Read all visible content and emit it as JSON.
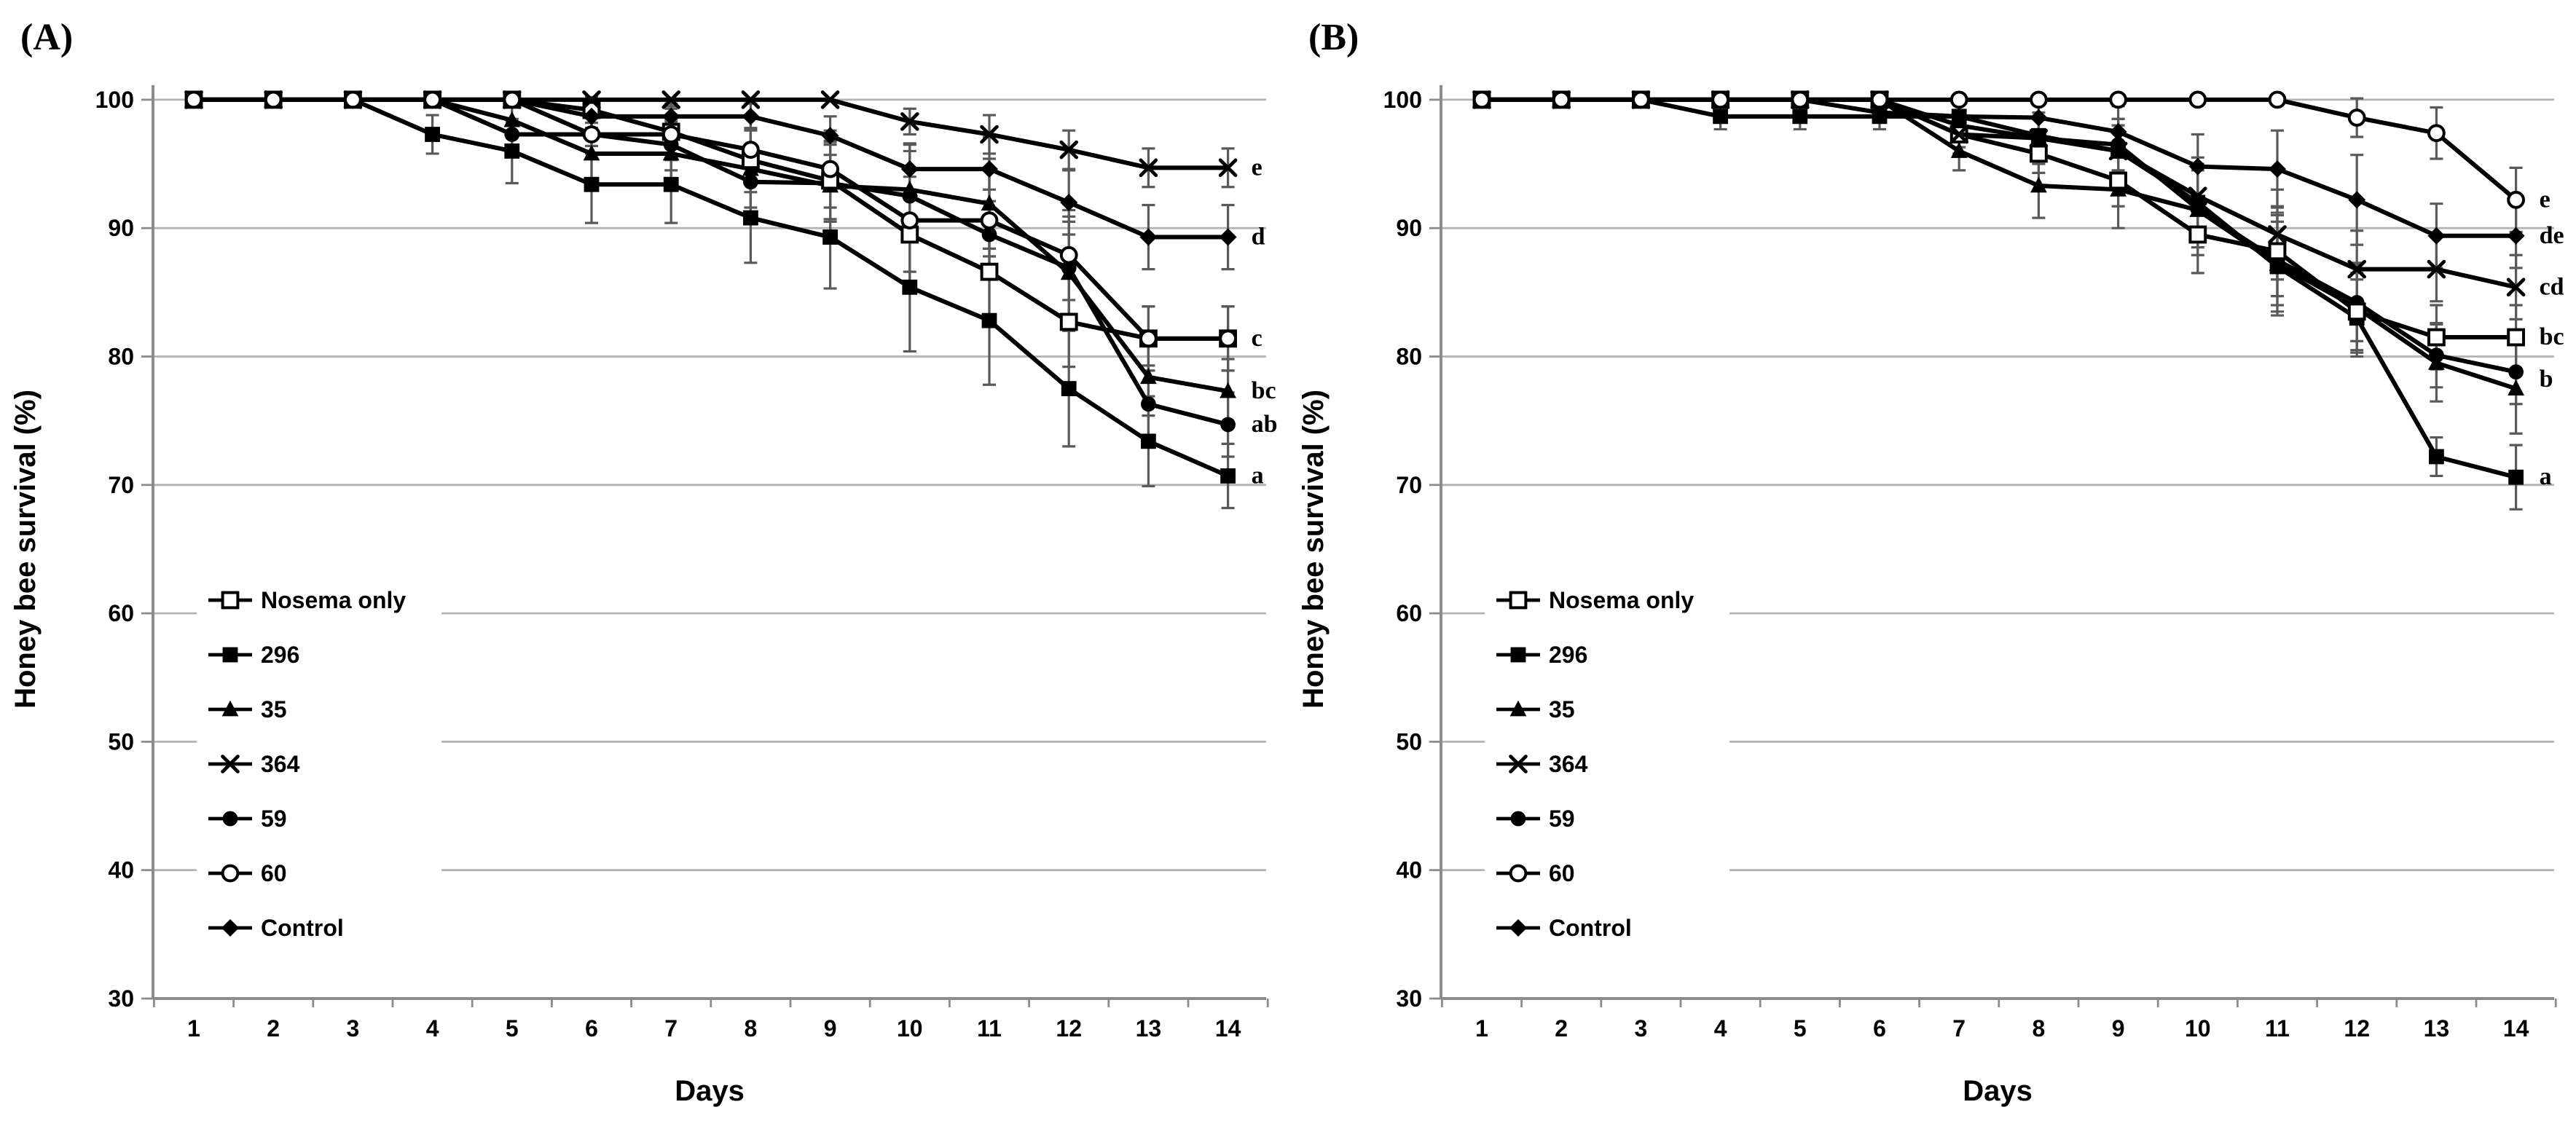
{
  "figure": {
    "background": "#ffffff",
    "series_color": "#000000",
    "grid_color": "#b3b3b3",
    "axis_color": "#8c8c8c",
    "errorbar_color": "#595959",
    "panels": [
      {
        "label": "(A)"
      },
      {
        "label": "(B)"
      }
    ]
  },
  "chart_data": [
    {
      "type": "line",
      "title": "(A)",
      "xlabel": "Days",
      "ylabel": "Honey bee survival (%)",
      "x": [
        1,
        2,
        3,
        4,
        5,
        6,
        7,
        8,
        9,
        10,
        11,
        12,
        13,
        14
      ],
      "xtick_labels": [
        "1",
        "2",
        "3",
        "4",
        "5",
        "6",
        "7",
        "8",
        "9",
        "10",
        "11",
        "12",
        "13",
        "14"
      ],
      "ylim": [
        30,
        100
      ],
      "yticks": [
        30,
        40,
        50,
        60,
        70,
        80,
        90,
        100
      ],
      "grid": true,
      "legend_position": "inside-left-middle",
      "series": [
        {
          "name": "Nosema only",
          "marker": "open-square",
          "values": [
            100,
            100,
            100,
            100,
            100,
            99.2,
            97.5,
            95.3,
            93.7,
            89.5,
            86.6,
            82.7,
            81.4,
            81.4
          ],
          "err": [
            0,
            0,
            0,
            0,
            0,
            1,
            2,
            2.5,
            3,
            4.5,
            4,
            3.5,
            2.5,
            2.5
          ]
        },
        {
          "name": "296",
          "marker": "filled-square",
          "values": [
            100,
            100,
            100,
            97.3,
            96,
            93.4,
            93.4,
            90.8,
            89.3,
            85.4,
            82.8,
            77.5,
            73.4,
            70.7
          ],
          "err": [
            0,
            0,
            0,
            1.5,
            2.5,
            3,
            3,
            3.5,
            4,
            5,
            5,
            4.5,
            3.5,
            2.5
          ]
        },
        {
          "name": "35",
          "marker": "filled-triangle",
          "values": [
            100,
            100,
            100,
            100,
            98.4,
            95.8,
            95.8,
            94.6,
            93.3,
            93,
            91.9,
            86.5,
            78.4,
            77.3
          ],
          "err": [
            0,
            0,
            0,
            0,
            1,
            2,
            2.5,
            3,
            3.5,
            3.5,
            3.5,
            4,
            3,
            2.5
          ]
        },
        {
          "name": "364",
          "marker": "x-cross",
          "values": [
            100,
            100,
            100,
            100,
            100,
            100,
            100,
            100,
            100,
            98.3,
            97.3,
            96.1,
            94.7,
            94.7
          ],
          "err": [
            0,
            0,
            0,
            0,
            0,
            0,
            0,
            0,
            0,
            1,
            1.5,
            1.5,
            1.5,
            1.5
          ]
        },
        {
          "name": "59",
          "marker": "filled-circle",
          "values": [
            100,
            100,
            100,
            100,
            97.3,
            97.3,
            96.5,
            93.6,
            93.5,
            92.5,
            89.5,
            86.9,
            76.3,
            74.7
          ],
          "err": [
            0,
            0,
            0,
            0,
            1,
            1.5,
            2,
            2.5,
            3,
            3.5,
            3.5,
            4,
            3,
            2.5
          ]
        },
        {
          "name": "60",
          "marker": "open-circle",
          "values": [
            100,
            100,
            100,
            100,
            100,
            97.3,
            97.3,
            96.1,
            94.6,
            90.6,
            90.6,
            87.9,
            81.4,
            81.4
          ],
          "err": [
            0,
            0,
            0,
            0,
            0,
            1.5,
            2,
            2.5,
            3,
            4,
            4,
            3.5,
            2.5,
            2.5
          ]
        },
        {
          "name": "Control",
          "marker": "filled-diamond",
          "values": [
            100,
            100,
            100,
            100,
            100,
            98.7,
            98.7,
            98.7,
            97.2,
            94.6,
            94.6,
            92,
            89.3,
            89.3
          ],
          "err": [
            0,
            0,
            0,
            0,
            0,
            1,
            1,
            1,
            1.5,
            2,
            2.5,
            2.5,
            2.5,
            2.5
          ]
        }
      ],
      "annotations": [
        {
          "text": "e",
          "value": 94.7
        },
        {
          "text": "d",
          "value": 89.3
        },
        {
          "text": "c",
          "value": 81.4
        },
        {
          "text": "bc",
          "value": 77.3
        },
        {
          "text": "ab",
          "value": 74.7
        },
        {
          "text": "a",
          "value": 70.7
        }
      ]
    },
    {
      "type": "line",
      "title": "(B)",
      "xlabel": "Days",
      "ylabel": "Honey bee survival (%)",
      "x": [
        1,
        2,
        3,
        4,
        5,
        6,
        7,
        8,
        9,
        10,
        11,
        12,
        13,
        14
      ],
      "xtick_labels": [
        "1",
        "2",
        "3",
        "4",
        "5",
        "6",
        "7",
        "8",
        "9",
        "10",
        "11",
        "12",
        "13",
        "14"
      ],
      "ylim": [
        30,
        100
      ],
      "yticks": [
        30,
        40,
        50,
        60,
        70,
        80,
        90,
        100
      ],
      "grid": true,
      "legend_position": "inside-left-middle",
      "series": [
        {
          "name": "Nosema only",
          "marker": "open-square",
          "values": [
            100,
            100,
            100,
            100,
            100,
            100,
            97.3,
            95.8,
            93.7,
            89.5,
            88.2,
            83.5,
            81.5,
            81.5
          ],
          "err": [
            0,
            0,
            0,
            0,
            0,
            0,
            1,
            1.5,
            2,
            3,
            3.5,
            3,
            2.5,
            2.5
          ]
        },
        {
          "name": "296",
          "marker": "filled-square",
          "values": [
            100,
            100,
            100,
            98.7,
            98.7,
            98.7,
            98.7,
            97.2,
            96,
            92,
            87,
            83,
            72.2,
            70.6
          ],
          "err": [
            0,
            0,
            0,
            1,
            1,
            1,
            1,
            1.5,
            2,
            3,
            3.5,
            3,
            1.5,
            2.5
          ]
        },
        {
          "name": "35",
          "marker": "filled-triangle",
          "values": [
            100,
            100,
            100,
            100,
            100,
            100,
            96,
            93.3,
            93,
            91.4,
            87.2,
            83.8,
            79.5,
            77.5
          ],
          "err": [
            0,
            0,
            0,
            0,
            0,
            0,
            1.5,
            2.5,
            3,
            3.5,
            4,
            3.5,
            3,
            3.5
          ]
        },
        {
          "name": "364",
          "marker": "x-cross",
          "values": [
            100,
            100,
            100,
            100,
            100,
            100,
            97.3,
            97,
            96,
            92.5,
            89.5,
            86.8,
            86.8,
            85.4
          ],
          "err": [
            0,
            0,
            0,
            0,
            0,
            0,
            1.5,
            2,
            2.5,
            3,
            3.5,
            3,
            2.5,
            2.5
          ]
        },
        {
          "name": "59",
          "marker": "filled-circle",
          "values": [
            100,
            100,
            100,
            100,
            100,
            100,
            98,
            97,
            96.5,
            91.5,
            87.5,
            84.2,
            80.1,
            78.8
          ],
          "err": [
            0,
            0,
            0,
            0,
            0,
            0,
            1,
            1.5,
            2,
            3,
            3.5,
            3,
            2.5,
            2.5
          ]
        },
        {
          "name": "60",
          "marker": "open-circle",
          "values": [
            100,
            100,
            100,
            100,
            100,
            100,
            100,
            100,
            100,
            100,
            100,
            98.6,
            97.4,
            92.2
          ],
          "err": [
            0,
            0,
            0,
            0,
            0,
            0,
            0,
            0,
            0,
            0,
            0,
            1.5,
            2,
            2.5
          ]
        },
        {
          "name": "Control",
          "marker": "filled-diamond",
          "values": [
            100,
            100,
            100,
            100,
            100,
            99,
            98.7,
            98.6,
            97.5,
            94.8,
            94.6,
            92.2,
            89.4,
            89.4
          ],
          "err": [
            0,
            0,
            0,
            0,
            0,
            0,
            1,
            1.5,
            2,
            2.5,
            3,
            3.5,
            2.5,
            2.5
          ]
        }
      ],
      "annotations": [
        {
          "text": "e",
          "value": 92.2
        },
        {
          "text": "de",
          "value": 89.4
        },
        {
          "text": "cd",
          "value": 85.4
        },
        {
          "text": "bc",
          "value": 81.5
        },
        {
          "text": "b",
          "value": 78.2
        },
        {
          "text": "a",
          "value": 70.6
        }
      ]
    }
  ]
}
